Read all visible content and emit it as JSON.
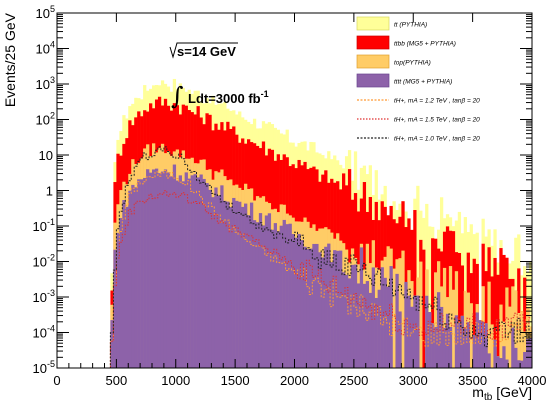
{
  "chart_data": {
    "type": "area",
    "xlabel": "m_tb [GeV]",
    "xlabel_main": "m",
    "xlabel_sub": "tb",
    "xlabel_unit": " [GeV]",
    "ylabel": "Events/25 GeV",
    "xlim": [
      0,
      4000
    ],
    "ylim": [
      1e-05,
      100000.0
    ],
    "yscale": "log",
    "grid": false,
    "legend_position": "top-right",
    "x_ticks": [
      0,
      500,
      1000,
      1500,
      2000,
      2500,
      3000,
      3500,
      4000
    ],
    "x_tick_labels": [
      "0",
      "500",
      "1000",
      "1500",
      "2000",
      "2500",
      "3000",
      "3500",
      "4000"
    ],
    "y_tick_exponents": [
      -5,
      -4,
      -3,
      -2,
      -1,
      0,
      1,
      2,
      3,
      4,
      5
    ],
    "y_tick_labels": [
      "10",
      "10",
      "10",
      "10",
      "10",
      "1",
      "10",
      "10",
      "10",
      "10",
      "10"
    ],
    "y_tick_sups": [
      "-5",
      "-4",
      "-3",
      "-2",
      "-1",
      "",
      "",
      "2",
      "3",
      "4",
      "5"
    ],
    "annotations": {
      "energy": "s=14 GeV",
      "lumi": "Ldt=3000 fb",
      "lumi_sup": "-1"
    },
    "stacked_backgrounds": [
      {
        "legend": "tt (PYTHIA)",
        "color": "#ffff99",
        "edge": "#d8d860",
        "curve": [
          [
            450,
            1e-05
          ],
          [
            475,
            0.4
          ],
          [
            500,
            20
          ],
          [
            600,
            150
          ],
          [
            700,
            350
          ],
          [
            800,
            700
          ],
          [
            900,
            800
          ],
          [
            1000,
            700
          ],
          [
            1200,
            350
          ],
          [
            1500,
            120
          ],
          [
            2000,
            20
          ],
          [
            2500,
            3
          ],
          [
            3000,
            0.4
          ],
          [
            3500,
            0.05
          ],
          [
            4000,
            0.008
          ]
        ]
      },
      {
        "legend": "ttbb (MG5 + PYTHIA)",
        "color": "#ff0000",
        "edge": "#cc0000",
        "curve": [
          [
            450,
            1e-05
          ],
          [
            475,
            0.2
          ],
          [
            500,
            6
          ],
          [
            600,
            60
          ],
          [
            700,
            150
          ],
          [
            800,
            260
          ],
          [
            900,
            300
          ],
          [
            1000,
            260
          ],
          [
            1200,
            130
          ],
          [
            1500,
            40
          ],
          [
            2000,
            6
          ],
          [
            2500,
            0.9
          ],
          [
            3000,
            0.12
          ],
          [
            3500,
            0.015
          ],
          [
            4000,
            0.002
          ]
        ]
      },
      {
        "legend": "top(PYTHIA)",
        "color": "#ffcc66",
        "edge": "#e0a030",
        "curve": [
          [
            450,
            1e-05
          ],
          [
            475,
            0.02
          ],
          [
            500,
            0.3
          ],
          [
            600,
            2.5
          ],
          [
            700,
            7
          ],
          [
            800,
            11
          ],
          [
            900,
            12
          ],
          [
            1000,
            10
          ],
          [
            1200,
            4
          ],
          [
            1500,
            1
          ],
          [
            2000,
            0.12
          ],
          [
            2500,
            0.02
          ],
          [
            3000,
            0.004
          ],
          [
            3500,
            0.001
          ],
          [
            4000,
            0.0003
          ]
        ]
      },
      {
        "legend": "tttt (MG5 + PYTHIA)",
        "color": "#8d62a9",
        "edge": "#6b4590",
        "curve": [
          [
            450,
            1e-05
          ],
          [
            475,
            0.004
          ],
          [
            500,
            0.08
          ],
          [
            600,
            0.8
          ],
          [
            700,
            2.2
          ],
          [
            800,
            3.5
          ],
          [
            900,
            4
          ],
          [
            1000,
            3.5
          ],
          [
            1200,
            1.8
          ],
          [
            1500,
            0.5
          ],
          [
            2000,
            0.06
          ],
          [
            2500,
            0.008
          ],
          [
            3000,
            0.001
          ],
          [
            3500,
            0.00015
          ],
          [
            4000,
            3e-05
          ]
        ]
      }
    ],
    "signals": [
      {
        "legend": "tH+, mA = 1.2 TeV , tanβ = 20",
        "color": "#ff9933",
        "dash": "2,1.5",
        "curve": [
          [
            450,
            1e-05
          ],
          [
            500,
            0.02
          ],
          [
            600,
            0.6
          ],
          [
            700,
            1.8
          ],
          [
            800,
            2.6
          ],
          [
            900,
            2.9
          ],
          [
            1000,
            2.6
          ],
          [
            1100,
            1.6
          ],
          [
            1200,
            0.7
          ],
          [
            1400,
            0.15
          ],
          [
            1600,
            0.04
          ],
          [
            2000,
            0.005
          ],
          [
            2500,
            0.0006
          ],
          [
            3000,
            0.0001
          ]
        ]
      },
      {
        "legend": "tH+, mA = 1.5 TeV , tanβ = 20",
        "color": "#e03030",
        "dash": "1.5,1.5",
        "curve": [
          [
            450,
            1e-05
          ],
          [
            500,
            0.01
          ],
          [
            600,
            0.2
          ],
          [
            700,
            0.5
          ],
          [
            800,
            0.7
          ],
          [
            900,
            0.8
          ],
          [
            1000,
            0.8
          ],
          [
            1100,
            0.6
          ],
          [
            1200,
            0.4
          ],
          [
            1400,
            0.12
          ],
          [
            1600,
            0.05
          ],
          [
            2000,
            0.008
          ],
          [
            2500,
            0.001
          ],
          [
            3000,
            0.00015
          ]
        ]
      },
      {
        "legend": "tH+, mA = 1.0 TeV , tanβ = 20",
        "color": "#222222",
        "dash": "2,1.5",
        "curve": [
          [
            450,
            1e-05
          ],
          [
            500,
            0.05
          ],
          [
            600,
            2
          ],
          [
            700,
            7
          ],
          [
            800,
            12
          ],
          [
            900,
            15
          ],
          [
            1000,
            11
          ],
          [
            1100,
            5
          ],
          [
            1200,
            2
          ],
          [
            1400,
            0.5
          ],
          [
            1600,
            0.15
          ],
          [
            2000,
            0.03
          ],
          [
            2500,
            0.006
          ],
          [
            3000,
            0.001
          ],
          [
            3500,
            0.0001
          ]
        ]
      }
    ]
  }
}
